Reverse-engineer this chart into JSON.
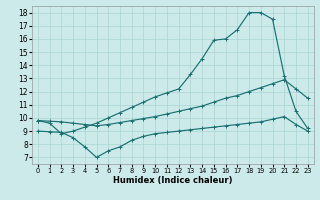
{
  "bg_color": "#cceaea",
  "grid_color": "#aad4d4",
  "line_color": "#1a7070",
  "xlabel": "Humidex (Indice chaleur)",
  "xlim": [
    -0.5,
    23.5
  ],
  "ylim": [
    6.5,
    18.5
  ],
  "yticks": [
    7,
    8,
    9,
    10,
    11,
    12,
    13,
    14,
    15,
    16,
    17,
    18
  ],
  "xticks": [
    0,
    1,
    2,
    3,
    4,
    5,
    6,
    7,
    8,
    9,
    10,
    11,
    12,
    13,
    14,
    15,
    16,
    17,
    18,
    19,
    20,
    21,
    22,
    23
  ],
  "curve_top_y": [
    9.8,
    9.6,
    8.8,
    9.0,
    9.3,
    9.6,
    10.0,
    10.4,
    10.8,
    11.2,
    11.6,
    11.9,
    12.2,
    13.3,
    14.5,
    15.9,
    16.0,
    16.7,
    18.0,
    18.0,
    17.5,
    13.2,
    10.5,
    9.2
  ],
  "curve_mid_y": [
    9.8,
    9.75,
    9.7,
    9.6,
    9.5,
    9.4,
    9.5,
    9.65,
    9.8,
    9.95,
    10.1,
    10.3,
    10.5,
    10.7,
    10.9,
    11.2,
    11.5,
    11.7,
    12.0,
    12.3,
    12.6,
    12.9,
    12.2,
    11.5
  ],
  "curve_bot_y": [
    9.0,
    8.95,
    8.9,
    8.5,
    7.8,
    7.0,
    7.5,
    7.8,
    8.3,
    8.6,
    8.8,
    8.9,
    9.0,
    9.1,
    9.2,
    9.3,
    9.4,
    9.5,
    9.6,
    9.7,
    9.9,
    10.1,
    9.5,
    9.0
  ]
}
